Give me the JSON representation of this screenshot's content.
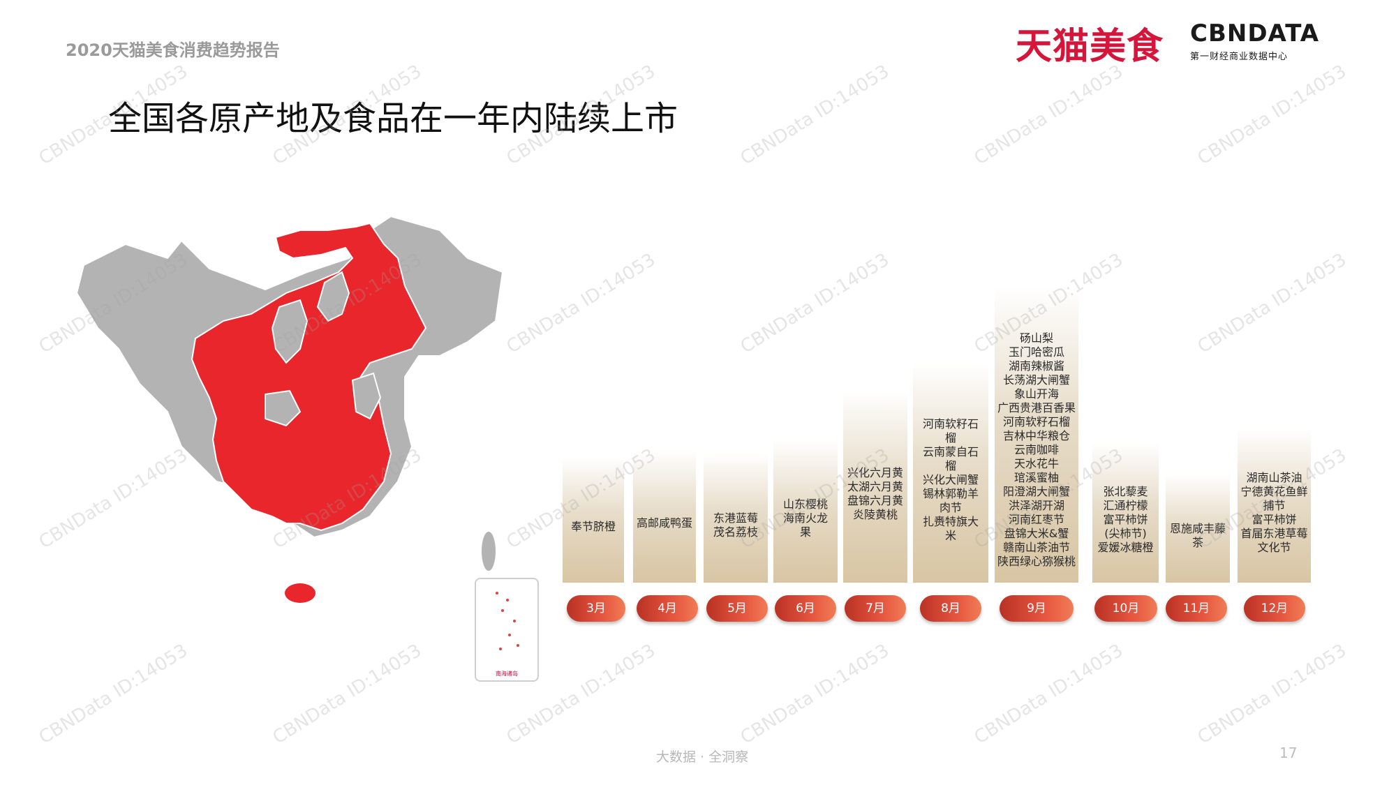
{
  "header": {
    "report_label": "2020天猫美食消费趋势报告",
    "brand_tmall": "天猫美食",
    "brand_cbn": "CBNDATA",
    "brand_cbn_sub": "第一财经商业数据中心"
  },
  "title": "全国各原产地及食品在一年内陆续上市",
  "colors": {
    "accent": "#e8262c",
    "map_gray": "#b3b3b3",
    "bar": "#d8c5a3",
    "pill": "#e0533f"
  },
  "timeline": [
    {
      "month": "3月",
      "foods": [
        "奉节脐橙"
      ]
    },
    {
      "month": "4月",
      "foods": [
        "高邮咸鸭蛋"
      ]
    },
    {
      "month": "5月",
      "foods": [
        "东港蓝莓",
        "茂名荔枝"
      ]
    },
    {
      "month": "6月",
      "foods": [
        "山东樱桃",
        "海南火龙",
        "果"
      ]
    },
    {
      "month": "7月",
      "foods": [
        "兴化六月黄",
        "太湖六月黄",
        "盘锦六月黄",
        "炎陵黄桃"
      ]
    },
    {
      "month": "8月",
      "foods": [
        "河南软籽石",
        "榴",
        "云南蒙自石",
        "榴",
        "兴化大闸蟹",
        "锡林郭勒羊",
        "肉节",
        "扎赉特旗大",
        "米"
      ]
    },
    {
      "month": "9月",
      "foods": [
        "砀山梨",
        "玉门哈密瓜",
        "湖南辣椒酱",
        "长荡湖大闸蟹",
        "象山开海",
        "广西贵港百香果",
        "河南软籽石榴",
        "吉林中华粮仓",
        "云南咖啡",
        "天水花牛",
        "琯溪蜜柚",
        "阳澄湖大闸蟹",
        "洪泽湖开湖",
        "河南红枣节",
        "盘锦大米&蟹",
        "赣南山茶油节",
        "陕西绿心猕猴桃"
      ]
    },
    {
      "month": "10月",
      "foods": [
        "张北藜麦",
        "汇通柠檬",
        "富平柿饼",
        "(尖柿节)",
        "爱媛冰糖橙"
      ]
    },
    {
      "month": "11月",
      "foods": [
        "恩施咸丰藤",
        "茶"
      ]
    },
    {
      "month": "12月",
      "foods": [
        "湖南山茶油",
        "宁德黄花鱼鲜",
        "捕节",
        "富平柿饼",
        "首届东港草莓",
        "文化节"
      ]
    }
  ],
  "inset_caption": "南海诸岛",
  "watermark": "CBNData ID:14053",
  "footer": {
    "tagline": "大数据 · 全洞察",
    "page_number": "17"
  }
}
